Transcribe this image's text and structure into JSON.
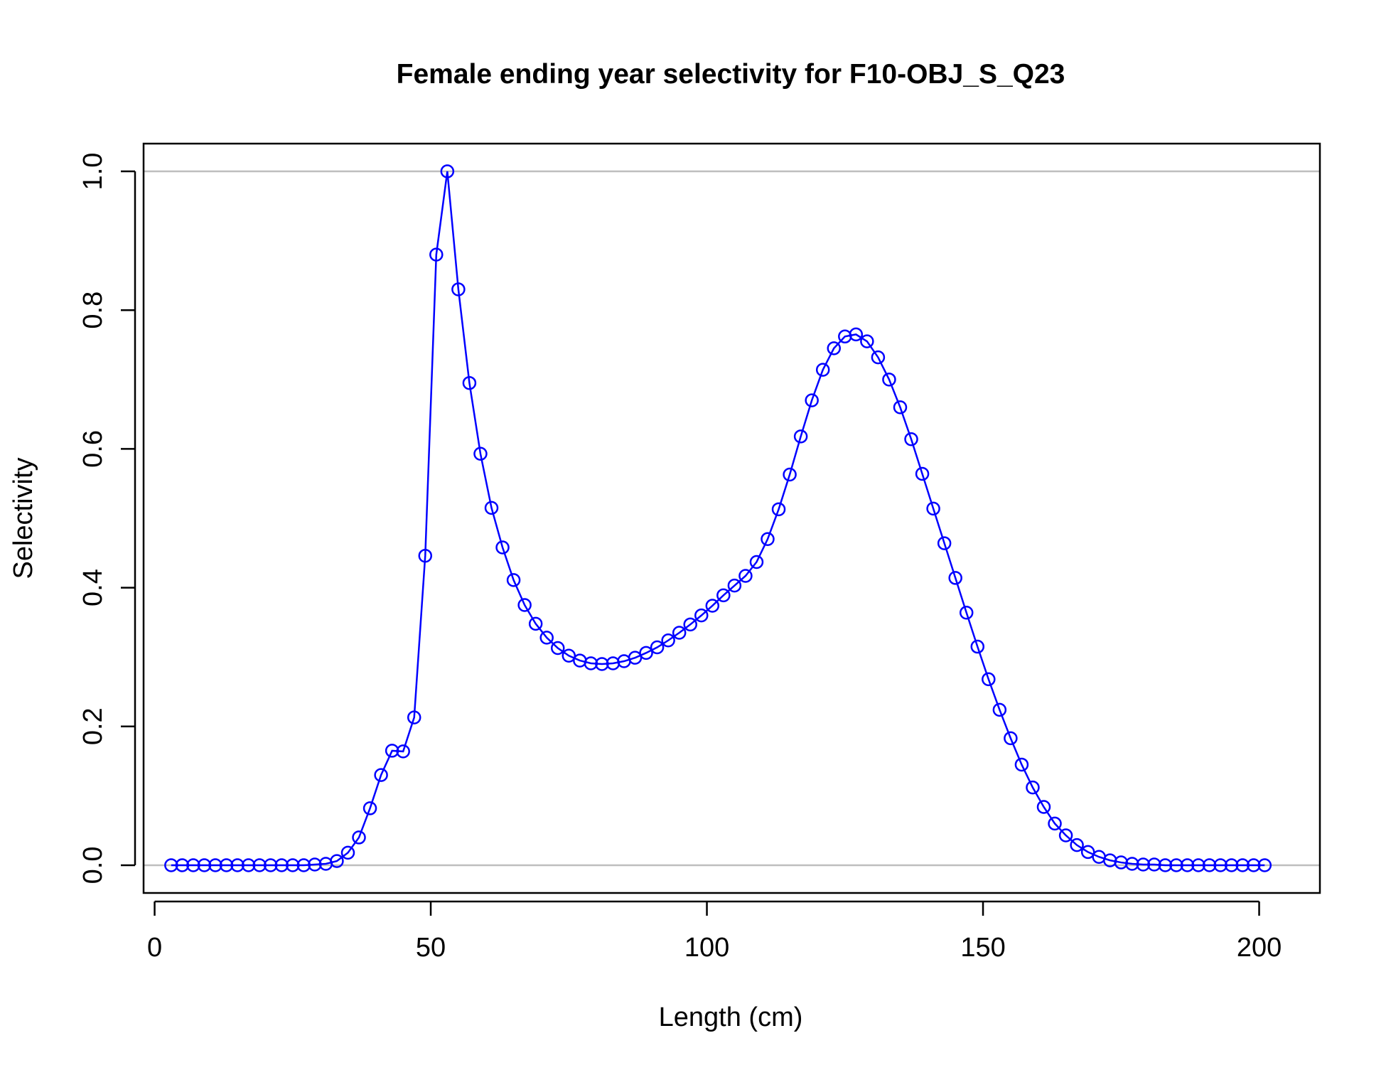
{
  "chart_data": {
    "type": "line",
    "title": "Female ending year selectivity for F10-OBJ_S_Q23",
    "xlabel": "Length (cm)",
    "ylabel": "Selectivity",
    "xlim": [
      -2,
      211
    ],
    "ylim": [
      -0.04,
      1.04
    ],
    "x_ticks": [
      0,
      50,
      100,
      150,
      200
    ],
    "y_ticks": [
      0.0,
      0.2,
      0.4,
      0.6,
      0.8,
      1.0
    ],
    "x_tick_labels": [
      "0",
      "50",
      "100",
      "150",
      "200"
    ],
    "y_tick_labels": [
      "0.0",
      "0.2",
      "0.4",
      "0.6",
      "0.8",
      "1.0"
    ],
    "reference_lines": [
      0,
      1
    ],
    "reference_line_color": "#bebebe",
    "series_color": "#0000ff",
    "markers": "open-circle",
    "grid": false,
    "series": [
      {
        "x": [
          3,
          5,
          7,
          9,
          11,
          13,
          15,
          17,
          19,
          21,
          23,
          25,
          27,
          29,
          31,
          33,
          35,
          37,
          39,
          41,
          43,
          45,
          47,
          49,
          51,
          53,
          55,
          57,
          59,
          61,
          63,
          65,
          67,
          69,
          71,
          73,
          75,
          77,
          79,
          81,
          83,
          85,
          87,
          89,
          91,
          93,
          95,
          97,
          99,
          101,
          103,
          105,
          107,
          109,
          111,
          113,
          115,
          117,
          119,
          121,
          123,
          125,
          127,
          129,
          131,
          133,
          135,
          137,
          139,
          141,
          143,
          145,
          147,
          149,
          151,
          153,
          155,
          157,
          159,
          161,
          163,
          165,
          167,
          169,
          171,
          173,
          175,
          177,
          179,
          181,
          183,
          185,
          187,
          189,
          191,
          193,
          195,
          197,
          199,
          201
        ],
        "values": [
          0,
          0,
          0,
          0,
          0,
          0,
          0,
          0,
          0,
          0,
          0,
          0,
          0,
          0.001,
          0.002,
          0.006,
          0.018,
          0.04,
          0.082,
          0.13,
          0.165,
          0.164,
          0.213,
          0.446,
          0.88,
          1.0,
          0.83,
          0.695,
          0.593,
          0.515,
          0.458,
          0.411,
          0.375,
          0.348,
          0.328,
          0.313,
          0.302,
          0.295,
          0.291,
          0.29,
          0.291,
          0.294,
          0.299,
          0.306,
          0.314,
          0.324,
          0.335,
          0.347,
          0.36,
          0.374,
          0.389,
          0.403,
          0.417,
          0.437,
          0.47,
          0.513,
          0.563,
          0.618,
          0.67,
          0.714,
          0.745,
          0.762,
          0.765,
          0.755,
          0.732,
          0.7,
          0.66,
          0.614,
          0.564,
          0.514,
          0.464,
          0.414,
          0.364,
          0.315,
          0.268,
          0.224,
          0.183,
          0.145,
          0.112,
          0.084,
          0.06,
          0.043,
          0.029,
          0.019,
          0.012,
          0.007,
          0.004,
          0.002,
          0.001,
          0.001,
          0,
          0,
          0,
          0,
          0,
          0,
          0,
          0,
          0,
          0
        ]
      }
    ]
  }
}
